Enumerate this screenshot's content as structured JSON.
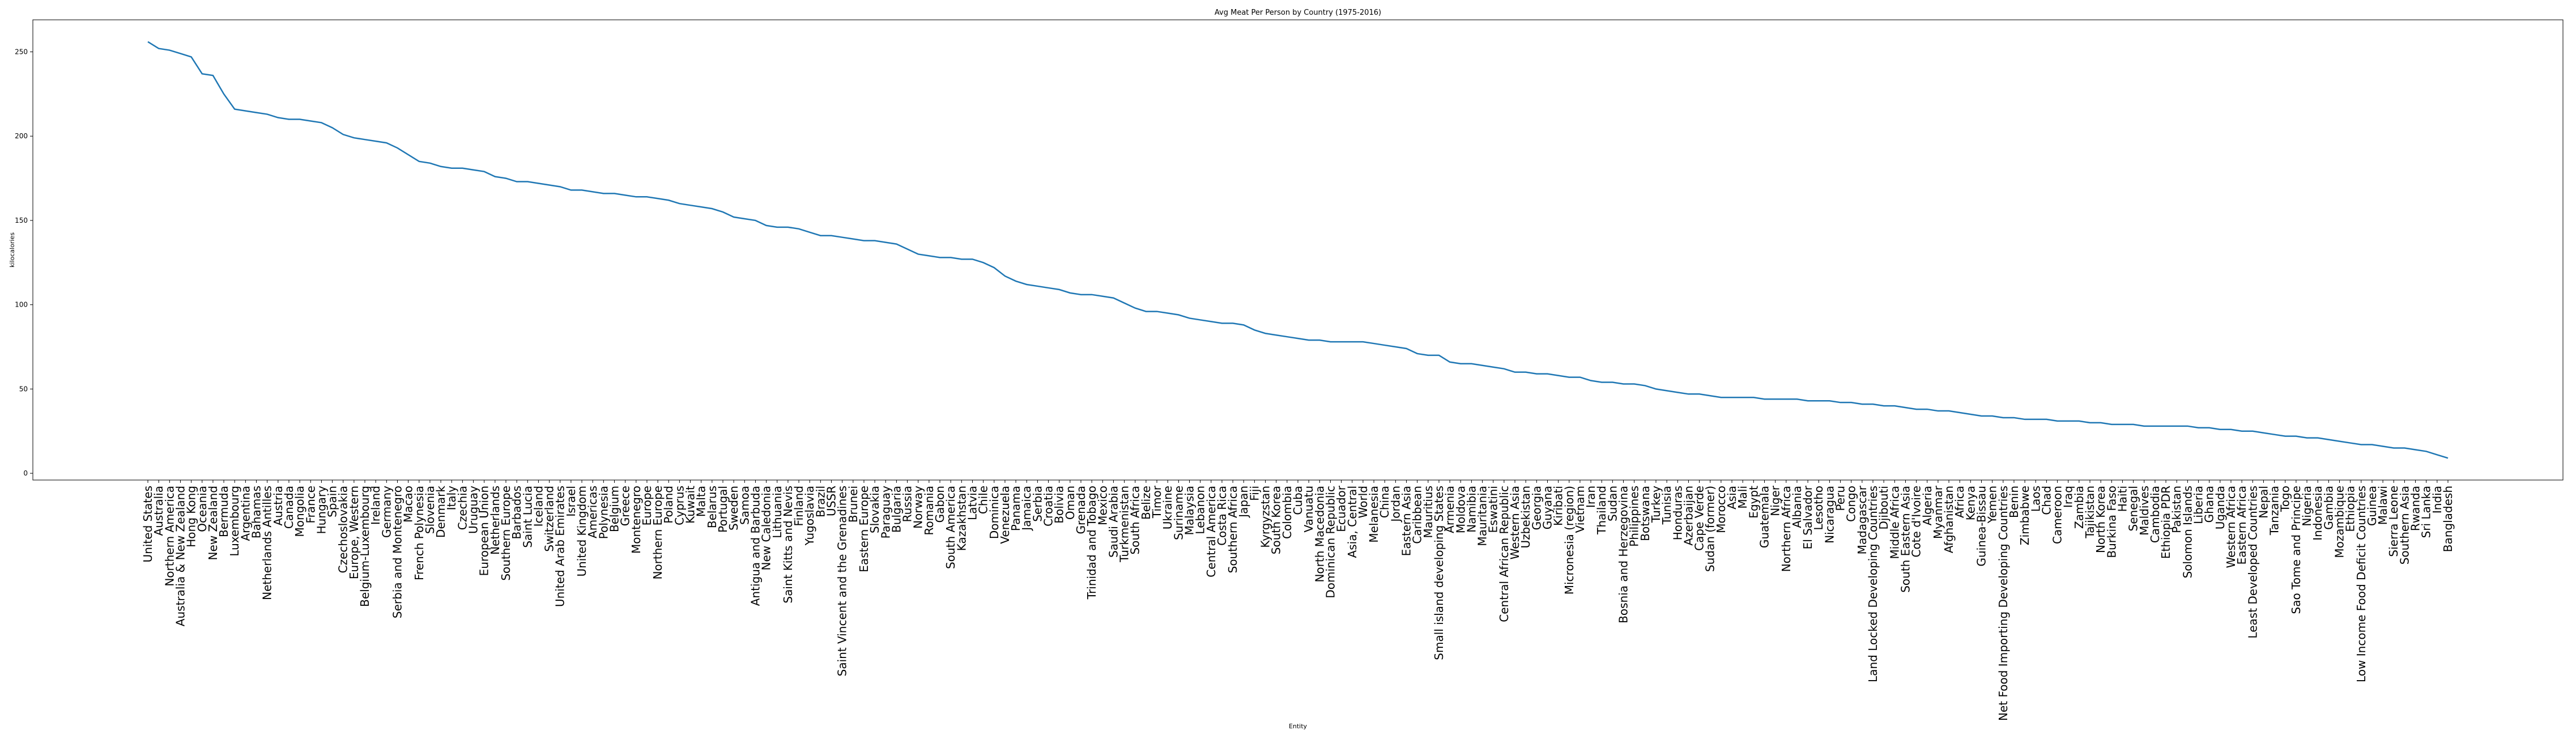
{
  "chart_data": {
    "type": "line",
    "title": "Avg Meat Per Person by Country (1975-2016)",
    "x_label": "Entity",
    "y_label": "kilocalories",
    "color": "#1f77b4",
    "grid": false,
    "categories": [
      "United States",
      "Australia",
      "Northern America",
      "Australia & New Zealand",
      "Hong Kong",
      "Oceania",
      "New Zealand",
      "Bermuda",
      "Luxembourg",
      "Argentina",
      "Bahamas",
      "Netherlands Antilles",
      "Austria",
      "Canada",
      "Mongolia",
      "France",
      "Hungary",
      "Spain",
      "Czechoslovakia",
      "Europe, Western",
      "Belgium-Luxembourg",
      "Ireland",
      "Germany",
      "Serbia and Montenegro",
      "Macao",
      "French Polynesia",
      "Slovenia",
      "Denmark",
      "Italy",
      "Czechia",
      "Uruguay",
      "European Union",
      "Netherlands",
      "Southern Europe",
      "Barbados",
      "Saint Lucia",
      "Iceland",
      "Switzerland",
      "United Arab Emirates",
      "Israel",
      "United Kingdom",
      "Americas",
      "Polynesia",
      "Belgium",
      "Greece",
      "Montenegro",
      "Europe",
      "Northern Europe",
      "Poland",
      "Cyprus",
      "Kuwait",
      "Malta",
      "Belarus",
      "Portugal",
      "Sweden",
      "Samoa",
      "Antigua and Barbuda",
      "New Caledonia",
      "Lithuania",
      "Saint Kitts and Nevis",
      "Finland",
      "Yugoslavia",
      "Brazil",
      "USSR",
      "Saint Vincent and the Grenadines",
      "Brunei",
      "Eastern Europe",
      "Slovakia",
      "Paraguay",
      "Bulgaria",
      "Russia",
      "Norway",
      "Romania",
      "Gabon",
      "South America",
      "Kazakhstan",
      "Latvia",
      "Chile",
      "Dominica",
      "Venezuela",
      "Panama",
      "Jamaica",
      "Serbia",
      "Croatia",
      "Bolivia",
      "Oman",
      "Grenada",
      "Trinidad and Tobago",
      "Mexico",
      "Saudi Arabia",
      "Turkmenistan",
      "South Africa",
      "Belize",
      "Timor",
      "Ukraine",
      "Suriname",
      "Malaysia",
      "Lebanon",
      "Central America",
      "Costa Rica",
      "Southern Africa",
      "Japan",
      "Fiji",
      "Kyrgyzstan",
      "South Korea",
      "Colombia",
      "Cuba",
      "Vanuatu",
      "North Macedonia",
      "Dominican Republic",
      "Ecuador",
      "Asia, Central",
      "World",
      "Melanesia",
      "China",
      "Jordan",
      "Eastern Asia",
      "Caribbean",
      "Mauritius",
      "Small island developing States",
      "Armenia",
      "Moldova",
      "Namibia",
      "Mauritania",
      "Eswatini",
      "Central African Republic",
      "Western Asia",
      "Uzbekistan",
      "Georgia",
      "Guyana",
      "Kiribati",
      "Micronesia (region)",
      "Vietnam",
      "Iran",
      "Thailand",
      "Sudan",
      "Bosnia and Herzegovina",
      "Philippines",
      "Botswana",
      "Turkey",
      "Tunisia",
      "Honduras",
      "Azerbaijan",
      "Cape Verde",
      "Sudan (former)",
      "Morocco",
      "Asia",
      "Mali",
      "Egypt",
      "Guatemala",
      "Niger",
      "Northern Africa",
      "Albania",
      "El Salvador",
      "Lesotho",
      "Nicaragua",
      "Peru",
      "Congo",
      "Madagascar",
      "Land Locked Developing Countries",
      "Djibouti",
      "Middle Africa",
      "South Eastern Asia",
      "Cote d'Ivoire",
      "Algeria",
      "Myanmar",
      "Afghanistan",
      "Africa",
      "Kenya",
      "Guinea-Bissau",
      "Yemen",
      "Net Food Importing Developing Countries",
      "Benin",
      "Zimbabwe",
      "Laos",
      "Chad",
      "Cameroon",
      "Iraq",
      "Zambia",
      "Tajikistan",
      "North Korea",
      "Burkina Faso",
      "Haiti",
      "Senegal",
      "Maldives",
      "Cambodia",
      "Ethiopia PDR",
      "Pakistan",
      "Solomon Islands",
      "Liberia",
      "Ghana",
      "Uganda",
      "Western Africa",
      "Eastern Africa",
      "Least Developed Countries",
      "Nepal",
      "Tanzania",
      "Togo",
      "Sao Tome and Principe",
      "Nigeria",
      "Indonesia",
      "Gambia",
      "Mozambique",
      "Ethiopia",
      "Low Income Food Deficit Countries",
      "Guinea",
      "Malawi",
      "Sierra Leone",
      "Southern Asia",
      "Rwanda",
      "Sri Lanka",
      "India",
      "Bangladesh"
    ],
    "values": [
      256,
      252,
      251,
      249,
      247,
      237,
      236,
      225,
      216,
      215,
      214,
      213,
      211,
      210,
      210,
      209,
      208,
      205,
      201,
      199,
      198,
      197,
      196,
      193,
      189,
      185,
      184,
      182,
      181,
      181,
      180,
      179,
      176,
      175,
      173,
      173,
      172,
      171,
      170,
      168,
      168,
      167,
      166,
      166,
      165,
      164,
      164,
      163,
      162,
      160,
      159,
      158,
      157,
      155,
      152,
      151,
      150,
      147,
      146,
      146,
      145,
      143,
      141,
      141,
      140,
      139,
      138,
      138,
      137,
      136,
      133,
      130,
      129,
      128,
      128,
      127,
      127,
      125,
      122,
      117,
      114,
      112,
      111,
      110,
      109,
      107,
      106,
      106,
      105,
      104,
      101,
      98,
      96,
      96,
      95,
      94,
      92,
      91,
      90,
      89,
      89,
      88,
      85,
      83,
      82,
      81,
      80,
      79,
      79,
      78,
      78,
      78,
      78,
      77,
      76,
      75,
      74,
      71,
      70,
      70,
      66,
      65,
      65,
      64,
      63,
      62,
      60,
      60,
      59,
      59,
      58,
      57,
      57,
      55,
      54,
      54,
      53,
      53,
      52,
      50,
      49,
      48,
      47,
      47,
      46,
      45,
      45,
      45,
      45,
      44,
      44,
      44,
      44,
      43,
      43,
      43,
      42,
      42,
      41,
      41,
      40,
      40,
      39,
      38,
      38,
      37,
      37,
      36,
      35,
      34,
      34,
      33,
      33,
      32,
      32,
      32,
      31,
      31,
      31,
      30,
      30,
      29,
      29,
      29,
      28,
      28,
      28,
      28,
      28,
      27,
      27,
      26,
      26,
      25,
      25,
      24,
      23,
      22,
      22,
      21,
      21,
      20,
      19,
      18,
      17,
      17,
      16,
      15,
      15,
      14,
      13,
      11,
      9
    ],
    "ylim": [
      -4,
      269
    ],
    "yticks": [
      0,
      50,
      100,
      150,
      200,
      250
    ]
  }
}
